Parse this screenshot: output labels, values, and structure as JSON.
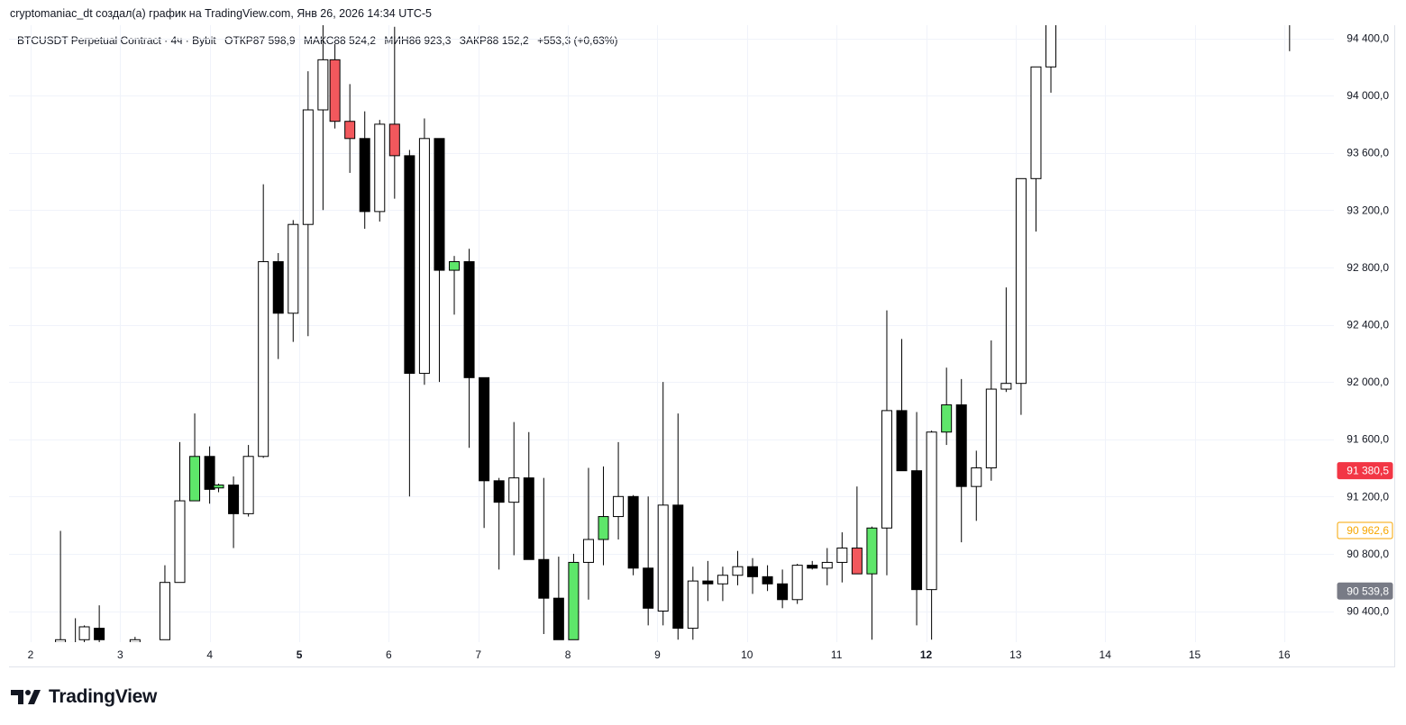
{
  "header": {
    "text": "cryptomaniac_dt создал(а) график на TradingView.com, Янв 26, 2026 14:34 UTC-5"
  },
  "legend": {
    "symbol": "BTCUSDT Perpetual Contract · 4ч · Bybit",
    "open": "ОТКР87 598,9",
    "high": "МАКС88 524,2",
    "low": "МИН86 923,3",
    "close": "ЗАКР88 152,2",
    "change": "+553,3 (+0,63%)"
  },
  "logo": {
    "text": "TradingView"
  },
  "colors": {
    "up_body": "#ffffff",
    "down_body": "#000000",
    "green_body": "#5ee66a",
    "red_body": "#f2585d",
    "wick": "#000000",
    "grid": "#f0f3fa"
  },
  "chart_data": {
    "type": "candlestick",
    "ylim": [
      90200,
      94620
    ],
    "y_ticks": [
      "94 400,0",
      "94 000,0",
      "93 600,0",
      "93 200,0",
      "92 800,0",
      "92 400,0",
      "92 000,0",
      "91 600,0",
      "91 200,0",
      "90 800,0",
      "90 400,0"
    ],
    "y_tick_values": [
      94400,
      94000,
      93600,
      93200,
      92800,
      92400,
      92000,
      91600,
      91200,
      90800,
      90400
    ],
    "x_ticks": [
      {
        "label": "2",
        "t": 0
      },
      {
        "label": "3",
        "t": 6
      },
      {
        "label": "4",
        "t": 12
      },
      {
        "label": "5",
        "t": 18,
        "bold": true
      },
      {
        "label": "6",
        "t": 24
      },
      {
        "label": "7",
        "t": 30
      },
      {
        "label": "8",
        "t": 36
      },
      {
        "label": "9",
        "t": 42
      },
      {
        "label": "10",
        "t": 48
      },
      {
        "label": "11",
        "t": 54
      },
      {
        "label": "12",
        "t": 60,
        "bold": true
      },
      {
        "label": "13",
        "t": 66
      },
      {
        "label": "14",
        "t": 72
      },
      {
        "label": "15",
        "t": 78
      },
      {
        "label": "16",
        "t": 84
      }
    ],
    "price_labels": [
      {
        "text": "91 380,5",
        "value": 91380.5,
        "bg": "#f23645",
        "fg": "#ffffff",
        "border": "#f23645"
      },
      {
        "text": "90 962,6",
        "value": 90962.6,
        "bg": "#ffffff",
        "fg": "#f7a600",
        "border": "#f7a600"
      },
      {
        "text": "90 539,8",
        "value": 90539.8,
        "bg": "#787b86",
        "fg": "#ffffff",
        "border": "#787b86"
      }
    ],
    "candles": [
      {
        "t": 2,
        "o": 90200,
        "h": 90960,
        "l": 90200,
        "c": 90200,
        "k": "up"
      },
      {
        "t": 3,
        "o": 90180,
        "h": 90350,
        "l": 90180,
        "c": 90180,
        "k": "up"
      },
      {
        "t": 3.6,
        "o": 90200,
        "h": 90300,
        "l": 90180,
        "c": 90290,
        "k": "up"
      },
      {
        "t": 4.6,
        "o": 90280,
        "h": 90440,
        "l": 90180,
        "c": 90200,
        "k": "down"
      },
      {
        "t": 7,
        "o": 90200,
        "h": 90220,
        "l": 90180,
        "c": 90190,
        "k": "up"
      },
      {
        "t": 9,
        "o": 90200,
        "h": 90720,
        "l": 90200,
        "c": 90600,
        "k": "up"
      },
      {
        "t": 10,
        "o": 90600,
        "h": 91580,
        "l": 90600,
        "c": 91170,
        "k": "up"
      },
      {
        "t": 11,
        "o": 91170,
        "h": 91780,
        "l": 91180,
        "c": 91480,
        "k": "green"
      },
      {
        "t": 12,
        "o": 91480,
        "h": 91550,
        "l": 91150,
        "c": 91250,
        "k": "down"
      },
      {
        "t": 12.6,
        "o": 91260,
        "h": 91290,
        "l": 91230,
        "c": 91280,
        "k": "green"
      },
      {
        "t": 13.6,
        "o": 91280,
        "h": 91340,
        "l": 90840,
        "c": 91080,
        "k": "down"
      },
      {
        "t": 14.6,
        "o": 91080,
        "h": 91560,
        "l": 91060,
        "c": 91480,
        "k": "up"
      },
      {
        "t": 15.6,
        "o": 91480,
        "h": 93380,
        "l": 91470,
        "c": 92840,
        "k": "up"
      },
      {
        "t": 16.6,
        "o": 92840,
        "h": 92900,
        "l": 92160,
        "c": 92480,
        "k": "down"
      },
      {
        "t": 17.6,
        "o": 92480,
        "h": 93130,
        "l": 92280,
        "c": 93100,
        "k": "up"
      },
      {
        "t": 18.6,
        "o": 93100,
        "h": 94170,
        "l": 92320,
        "c": 93900,
        "k": "up"
      },
      {
        "t": 19.6,
        "o": 93900,
        "h": 94560,
        "l": 93200,
        "c": 94250,
        "k": "up"
      },
      {
        "t": 20.4,
        "o": 94250,
        "h": 94360,
        "l": 93770,
        "c": 93820,
        "k": "red"
      },
      {
        "t": 21.4,
        "o": 93820,
        "h": 94080,
        "l": 93460,
        "c": 93700,
        "k": "red"
      },
      {
        "t": 22.4,
        "o": 93700,
        "h": 93890,
        "l": 93070,
        "c": 93190,
        "k": "down"
      },
      {
        "t": 23.4,
        "o": 93190,
        "h": 93830,
        "l": 93120,
        "c": 93800,
        "k": "up"
      },
      {
        "t": 24.4,
        "o": 93800,
        "h": 94480,
        "l": 93280,
        "c": 93580,
        "k": "red"
      },
      {
        "t": 25.4,
        "o": 93580,
        "h": 93620,
        "l": 91200,
        "c": 92060,
        "k": "down"
      },
      {
        "t": 26.4,
        "o": 92060,
        "h": 93840,
        "l": 91980,
        "c": 93700,
        "k": "up"
      },
      {
        "t": 27.4,
        "o": 93700,
        "h": 93700,
        "l": 92000,
        "c": 92780,
        "k": "down"
      },
      {
        "t": 28.4,
        "o": 92780,
        "h": 92880,
        "l": 92470,
        "c": 92840,
        "k": "green"
      },
      {
        "t": 29.4,
        "o": 92840,
        "h": 92930,
        "l": 91540,
        "c": 92030,
        "k": "down"
      },
      {
        "t": 30.4,
        "o": 92030,
        "h": 92010,
        "l": 90980,
        "c": 91310,
        "k": "down"
      },
      {
        "t": 31.4,
        "o": 91310,
        "h": 91330,
        "l": 90690,
        "c": 91160,
        "k": "down"
      },
      {
        "t": 32.4,
        "o": 91160,
        "h": 91720,
        "l": 90790,
        "c": 91330,
        "k": "up"
      },
      {
        "t": 33.4,
        "o": 91330,
        "h": 91650,
        "l": 90760,
        "c": 90760,
        "k": "down"
      },
      {
        "t": 34.4,
        "o": 90760,
        "h": 91330,
        "l": 90240,
        "c": 90490,
        "k": "down"
      },
      {
        "t": 35.4,
        "o": 90490,
        "h": 90780,
        "l": 90200,
        "c": 90200,
        "k": "down"
      },
      {
        "t": 36.4,
        "o": 90200,
        "h": 90800,
        "l": 90200,
        "c": 90740,
        "k": "green"
      },
      {
        "t": 37.4,
        "o": 90740,
        "h": 91400,
        "l": 90480,
        "c": 90900,
        "k": "up"
      },
      {
        "t": 38.4,
        "o": 90900,
        "h": 91410,
        "l": 90720,
        "c": 91060,
        "k": "green"
      },
      {
        "t": 39.4,
        "o": 91060,
        "h": 91580,
        "l": 90900,
        "c": 91200,
        "k": "up"
      },
      {
        "t": 40.4,
        "o": 91200,
        "h": 91210,
        "l": 90650,
        "c": 90700,
        "k": "down"
      },
      {
        "t": 41.4,
        "o": 90700,
        "h": 91200,
        "l": 90300,
        "c": 90420,
        "k": "down"
      },
      {
        "t": 42.4,
        "o": 90400,
        "h": 92000,
        "l": 90300,
        "c": 91140,
        "k": "up"
      },
      {
        "t": 43.4,
        "o": 91140,
        "h": 91780,
        "l": 90200,
        "c": 90280,
        "k": "down"
      },
      {
        "t": 44.4,
        "o": 90280,
        "h": 90710,
        "l": 90200,
        "c": 90610,
        "k": "up"
      },
      {
        "t": 45.4,
        "o": 90610,
        "h": 90750,
        "l": 90470,
        "c": 90590,
        "k": "down"
      },
      {
        "t": 46.4,
        "o": 90590,
        "h": 90710,
        "l": 90470,
        "c": 90650,
        "k": "up"
      },
      {
        "t": 47.4,
        "o": 90650,
        "h": 90820,
        "l": 90580,
        "c": 90710,
        "k": "up"
      },
      {
        "t": 48.4,
        "o": 90710,
        "h": 90770,
        "l": 90520,
        "c": 90640,
        "k": "down"
      },
      {
        "t": 49.4,
        "o": 90640,
        "h": 90720,
        "l": 90540,
        "c": 90590,
        "k": "down"
      },
      {
        "t": 50.4,
        "o": 90590,
        "h": 90690,
        "l": 90420,
        "c": 90480,
        "k": "down"
      },
      {
        "t": 51.4,
        "o": 90480,
        "h": 90730,
        "l": 90450,
        "c": 90720,
        "k": "up"
      },
      {
        "t": 52.4,
        "o": 90720,
        "h": 90750,
        "l": 90690,
        "c": 90700,
        "k": "down"
      },
      {
        "t": 53.4,
        "o": 90700,
        "h": 90840,
        "l": 90580,
        "c": 90740,
        "k": "up"
      },
      {
        "t": 54.4,
        "o": 90740,
        "h": 90950,
        "l": 90600,
        "c": 90840,
        "k": "up"
      },
      {
        "t": 55.4,
        "o": 90840,
        "h": 91270,
        "l": 90660,
        "c": 90660,
        "k": "red"
      },
      {
        "t": 56.4,
        "o": 90660,
        "h": 90990,
        "l": 90200,
        "c": 90980,
        "k": "green"
      },
      {
        "t": 57.4,
        "o": 90980,
        "h": 92500,
        "l": 90650,
        "c": 91800,
        "k": "up"
      },
      {
        "t": 58.4,
        "o": 91800,
        "h": 92300,
        "l": 91380,
        "c": 91380,
        "k": "down"
      },
      {
        "t": 59.4,
        "o": 91380,
        "h": 91790,
        "l": 90300,
        "c": 90550,
        "k": "down"
      },
      {
        "t": 60.4,
        "o": 90550,
        "h": 91660,
        "l": 90200,
        "c": 91650,
        "k": "up"
      },
      {
        "t": 61.4,
        "o": 91650,
        "h": 92100,
        "l": 91560,
        "c": 91840,
        "k": "green"
      },
      {
        "t": 62.4,
        "o": 91840,
        "h": 92020,
        "l": 90880,
        "c": 91270,
        "k": "down"
      },
      {
        "t": 63.4,
        "o": 91270,
        "h": 91520,
        "l": 91030,
        "c": 91400,
        "k": "up"
      },
      {
        "t": 64.4,
        "o": 91400,
        "h": 92290,
        "l": 91310,
        "c": 91950,
        "k": "up"
      },
      {
        "t": 65.4,
        "o": 91950,
        "h": 92660,
        "l": 91930,
        "c": 91990,
        "k": "up"
      },
      {
        "t": 66.4,
        "o": 91990,
        "h": 93420,
        "l": 91770,
        "c": 93420,
        "k": "up"
      },
      {
        "t": 67.4,
        "o": 93420,
        "h": 94200,
        "l": 93050,
        "c": 94200,
        "k": "up"
      },
      {
        "t": 68.4,
        "o": 94200,
        "h": 94620,
        "l": 94020,
        "c": 94600,
        "k": "up"
      },
      {
        "t": 84.4,
        "o": 94600,
        "h": 94620,
        "l": 94310,
        "c": 94600,
        "k": "up"
      },
      {
        "t": 85.4,
        "o": 94600,
        "h": 94620,
        "l": 94590,
        "c": 94600,
        "k": "up"
      }
    ]
  }
}
